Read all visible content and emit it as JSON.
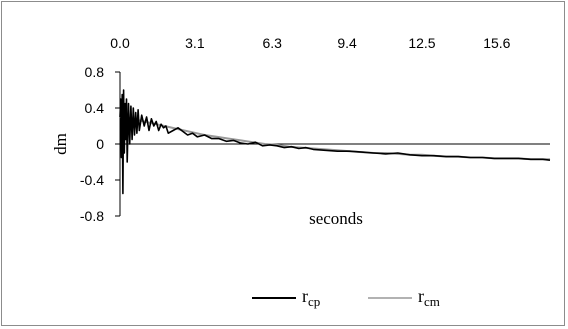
{
  "chart_data": {
    "type": "line",
    "title": "",
    "xlabel": "seconds",
    "ylabel": "dm",
    "xlim": [
      0,
      17.8
    ],
    "ylim": [
      -0.8,
      0.8
    ],
    "x_ticks": [
      "0.0",
      "3.1",
      "6.3",
      "9.4",
      "12.5",
      "15.6"
    ],
    "x_tick_values": [
      0.0,
      3.1,
      6.3,
      9.4,
      12.5,
      15.6
    ],
    "y_ticks": [
      "0.8",
      "0.4",
      "0",
      "-0.4",
      "-0.8"
    ],
    "y_tick_values": [
      0.8,
      0.4,
      0,
      -0.4,
      -0.8
    ],
    "grid": false,
    "legend_position": "bottom-right",
    "series": [
      {
        "name": "r_cp",
        "color": "#000000",
        "x": [
          0.0,
          0.03,
          0.06,
          0.09,
          0.12,
          0.15,
          0.18,
          0.21,
          0.24,
          0.27,
          0.3,
          0.35,
          0.4,
          0.45,
          0.5,
          0.55,
          0.6,
          0.65,
          0.7,
          0.75,
          0.8,
          0.9,
          1.0,
          1.1,
          1.2,
          1.3,
          1.4,
          1.5,
          1.6,
          1.7,
          1.8,
          1.9,
          2.0,
          2.2,
          2.4,
          2.6,
          2.8,
          3.0,
          3.2,
          3.5,
          3.8,
          4.1,
          4.4,
          4.7,
          5.0,
          5.3,
          5.6,
          5.9,
          6.2,
          6.5,
          6.8,
          7.1,
          7.4,
          7.7,
          8.0,
          8.5,
          9.0,
          9.5,
          10.0,
          10.5,
          11.0,
          11.5,
          12.0,
          12.5,
          13.0,
          13.5,
          14.0,
          14.5,
          15.0,
          15.5,
          16.0,
          16.5,
          17.0,
          17.5,
          17.8
        ],
        "values": [
          0.3,
          0.5,
          -0.15,
          0.55,
          -0.55,
          0.6,
          -0.1,
          0.45,
          0.05,
          0.5,
          -0.2,
          0.45,
          0.0,
          0.42,
          0.05,
          0.4,
          0.1,
          0.35,
          0.12,
          0.38,
          0.15,
          0.32,
          0.2,
          0.3,
          0.15,
          0.28,
          0.2,
          0.25,
          0.15,
          0.22,
          0.18,
          0.2,
          0.12,
          0.15,
          0.18,
          0.14,
          0.1,
          0.12,
          0.08,
          0.1,
          0.06,
          0.06,
          0.03,
          0.04,
          0.01,
          0.0,
          0.02,
          -0.02,
          -0.01,
          -0.02,
          -0.04,
          -0.03,
          -0.05,
          -0.04,
          -0.06,
          -0.07,
          -0.08,
          -0.08,
          -0.09,
          -0.1,
          -0.11,
          -0.1,
          -0.12,
          -0.13,
          -0.13,
          -0.14,
          -0.14,
          -0.15,
          -0.15,
          -0.16,
          -0.16,
          -0.16,
          -0.17,
          -0.17,
          -0.18
        ]
      },
      {
        "name": "r_cm",
        "color": "#999999",
        "x": [
          0.0,
          0.5,
          1.0,
          1.5,
          2.0,
          2.5,
          3.0,
          3.5,
          4.0,
          4.5,
          5.0,
          5.5,
          6.0,
          6.5,
          7.0,
          7.5,
          8.0,
          8.5,
          9.0,
          9.5,
          10.0,
          10.5,
          11.0,
          11.5,
          12.0,
          12.5,
          13.0,
          13.5,
          14.0,
          14.5,
          15.0,
          15.5,
          16.0,
          16.5,
          17.0,
          17.5,
          17.8
        ],
        "values": [
          0.3,
          0.28,
          0.25,
          0.22,
          0.19,
          0.16,
          0.13,
          0.1,
          0.08,
          0.06,
          0.04,
          0.02,
          0.0,
          -0.01,
          -0.03,
          -0.04,
          -0.05,
          -0.06,
          -0.07,
          -0.08,
          -0.09,
          -0.1,
          -0.1,
          -0.11,
          -0.12,
          -0.12,
          -0.13,
          -0.14,
          -0.14,
          -0.15,
          -0.15,
          -0.16,
          -0.16,
          -0.16,
          -0.17,
          -0.17,
          -0.17
        ]
      }
    ],
    "legend": [
      {
        "label_main": "r",
        "label_sub": "cp",
        "color": "#000000"
      },
      {
        "label_main": "r",
        "label_sub": "cm",
        "color": "#999999"
      }
    ]
  }
}
